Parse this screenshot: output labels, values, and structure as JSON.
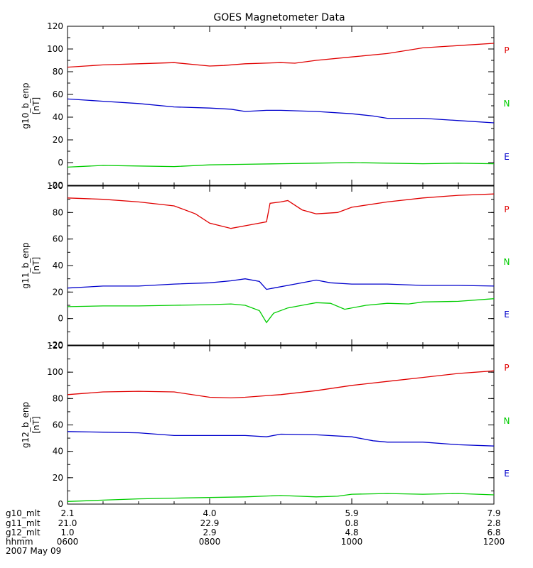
{
  "chart_data": {
    "type": "line",
    "title": "GOES Magnetometer Data",
    "x": {
      "min_hours": 6,
      "max_hours": 12,
      "tick_hours": [
        6,
        8,
        10,
        12
      ],
      "rows": [
        {
          "label": "g10_mlt",
          "values": [
            "2.1",
            "4.0",
            "5.9",
            "7.9"
          ]
        },
        {
          "label": "g11_mlt",
          "values": [
            "21.0",
            "22.9",
            "0.8",
            "2.8"
          ]
        },
        {
          "label": "g12_mlt",
          "values": [
            "1.0",
            "2.9",
            "4.8",
            "6.8"
          ]
        },
        {
          "label": "hhmm",
          "values": [
            "0600",
            "0800",
            "1000",
            "1200"
          ]
        }
      ],
      "date": "2007 May 09"
    },
    "legend": [
      {
        "label": "P",
        "color": "#e00000"
      },
      {
        "label": "N",
        "color": "#00cc00"
      },
      {
        "label": "E",
        "color": "#0000cc"
      }
    ],
    "panels": [
      {
        "ylabel": "g10_b_enp",
        "units": "[nT]",
        "ylim": [
          -20,
          120
        ],
        "yticks": [
          -20,
          0,
          20,
          40,
          60,
          80,
          100,
          120
        ],
        "series": [
          {
            "name": "P",
            "color": "#e00000",
            "points": [
              [
                6.0,
                84
              ],
              [
                6.5,
                86
              ],
              [
                7.0,
                87
              ],
              [
                7.5,
                88
              ],
              [
                8.0,
                85
              ],
              [
                8.2,
                85.5
              ],
              [
                8.5,
                87
              ],
              [
                9.0,
                88
              ],
              [
                9.2,
                87.5
              ],
              [
                9.5,
                90
              ],
              [
                10.0,
                93
              ],
              [
                10.5,
                96
              ],
              [
                10.8,
                99
              ],
              [
                11.0,
                101
              ],
              [
                11.5,
                103
              ],
              [
                12.0,
                105
              ]
            ]
          },
          {
            "name": "N",
            "color": "#00cc00",
            "points": [
              [
                6.0,
                -4
              ],
              [
                6.5,
                -2.5
              ],
              [
                7.0,
                -3
              ],
              [
                7.5,
                -3.5
              ],
              [
                8.0,
                -2
              ],
              [
                8.5,
                -1.5
              ],
              [
                9.0,
                -1
              ],
              [
                9.5,
                -0.5
              ],
              [
                10.0,
                0
              ],
              [
                10.5,
                -0.5
              ],
              [
                11.0,
                -1
              ],
              [
                11.5,
                -0.5
              ],
              [
                12.0,
                -1
              ]
            ]
          },
          {
            "name": "E",
            "color": "#0000cc",
            "points": [
              [
                6.0,
                56
              ],
              [
                6.5,
                54
              ],
              [
                7.0,
                52
              ],
              [
                7.5,
                49
              ],
              [
                8.0,
                48
              ],
              [
                8.3,
                47
              ],
              [
                8.5,
                45
              ],
              [
                8.8,
                46
              ],
              [
                9.0,
                46
              ],
              [
                9.5,
                45
              ],
              [
                10.0,
                43
              ],
              [
                10.3,
                41
              ],
              [
                10.5,
                39
              ],
              [
                11.0,
                39
              ],
              [
                11.5,
                37
              ],
              [
                12.0,
                35
              ]
            ]
          }
        ]
      },
      {
        "ylabel": "g11_b_enp",
        "units": "[nT]",
        "ylim": [
          -20,
          100
        ],
        "yticks": [
          -20,
          0,
          20,
          40,
          60,
          80,
          100
        ],
        "series": [
          {
            "name": "P",
            "color": "#e00000",
            "points": [
              [
                6.0,
                91
              ],
              [
                6.5,
                90
              ],
              [
                7.0,
                88
              ],
              [
                7.5,
                85
              ],
              [
                7.8,
                79
              ],
              [
                8.0,
                72
              ],
              [
                8.3,
                68
              ],
              [
                8.6,
                71
              ],
              [
                8.8,
                73
              ],
              [
                8.85,
                87
              ],
              [
                9.0,
                88
              ],
              [
                9.1,
                89
              ],
              [
                9.3,
                82
              ],
              [
                9.5,
                79
              ],
              [
                9.8,
                80
              ],
              [
                10.0,
                84
              ],
              [
                10.5,
                88
              ],
              [
                11.0,
                91
              ],
              [
                11.5,
                93
              ],
              [
                12.0,
                94
              ]
            ]
          },
          {
            "name": "N",
            "color": "#00cc00",
            "points": [
              [
                6.0,
                9
              ],
              [
                6.5,
                9.5
              ],
              [
                7.0,
                9.5
              ],
              [
                7.5,
                10
              ],
              [
                8.0,
                10.5
              ],
              [
                8.3,
                11
              ],
              [
                8.5,
                10
              ],
              [
                8.7,
                6
              ],
              [
                8.8,
                -3
              ],
              [
                8.9,
                4
              ],
              [
                9.1,
                8
              ],
              [
                9.3,
                10
              ],
              [
                9.5,
                12
              ],
              [
                9.7,
                11.5
              ],
              [
                9.9,
                7
              ],
              [
                10.2,
                10
              ],
              [
                10.5,
                11.5
              ],
              [
                10.8,
                11
              ],
              [
                11.0,
                12.5
              ],
              [
                11.5,
                13
              ],
              [
                12.0,
                15
              ]
            ]
          },
          {
            "name": "E",
            "color": "#0000cc",
            "points": [
              [
                6.0,
                23
              ],
              [
                6.5,
                24.5
              ],
              [
                7.0,
                24.5
              ],
              [
                7.5,
                26
              ],
              [
                8.0,
                27
              ],
              [
                8.3,
                28.5
              ],
              [
                8.5,
                30
              ],
              [
                8.7,
                28
              ],
              [
                8.8,
                22
              ],
              [
                8.9,
                23
              ],
              [
                9.2,
                26
              ],
              [
                9.5,
                29
              ],
              [
                9.7,
                27
              ],
              [
                10.0,
                26
              ],
              [
                10.5,
                26
              ],
              [
                11.0,
                25
              ],
              [
                11.5,
                25
              ],
              [
                12.0,
                24.5
              ]
            ]
          }
        ]
      },
      {
        "ylabel": "g12_b_enp",
        "units": "[nT]",
        "ylim": [
          0,
          120
        ],
        "yticks": [
          0,
          20,
          40,
          60,
          80,
          100,
          120
        ],
        "series": [
          {
            "name": "P",
            "color": "#e00000",
            "points": [
              [
                6.0,
                83
              ],
              [
                6.5,
                85
              ],
              [
                7.0,
                85.5
              ],
              [
                7.5,
                85
              ],
              [
                8.0,
                81
              ],
              [
                8.3,
                80.5
              ],
              [
                8.5,
                81
              ],
              [
                9.0,
                83
              ],
              [
                9.5,
                86
              ],
              [
                10.0,
                90
              ],
              [
                10.5,
                93
              ],
              [
                11.0,
                96
              ],
              [
                11.5,
                99
              ],
              [
                12.0,
                101
              ]
            ]
          },
          {
            "name": "N",
            "color": "#00cc00",
            "points": [
              [
                6.0,
                2
              ],
              [
                6.5,
                3
              ],
              [
                7.0,
                4
              ],
              [
                7.5,
                4.5
              ],
              [
                8.0,
                5
              ],
              [
                8.5,
                5.5
              ],
              [
                9.0,
                6.5
              ],
              [
                9.5,
                5.5
              ],
              [
                9.8,
                6
              ],
              [
                10.0,
                7.5
              ],
              [
                10.5,
                8
              ],
              [
                11.0,
                7.5
              ],
              [
                11.5,
                8
              ],
              [
                12.0,
                7
              ]
            ]
          },
          {
            "name": "E",
            "color": "#0000cc",
            "points": [
              [
                6.0,
                55
              ],
              [
                6.5,
                54.5
              ],
              [
                7.0,
                54
              ],
              [
                7.5,
                52
              ],
              [
                8.0,
                52
              ],
              [
                8.5,
                52
              ],
              [
                8.8,
                51
              ],
              [
                9.0,
                53
              ],
              [
                9.5,
                52.5
              ],
              [
                10.0,
                51
              ],
              [
                10.3,
                48
              ],
              [
                10.5,
                47
              ],
              [
                11.0,
                47
              ],
              [
                11.5,
                45
              ],
              [
                12.0,
                44
              ]
            ]
          }
        ]
      }
    ]
  }
}
